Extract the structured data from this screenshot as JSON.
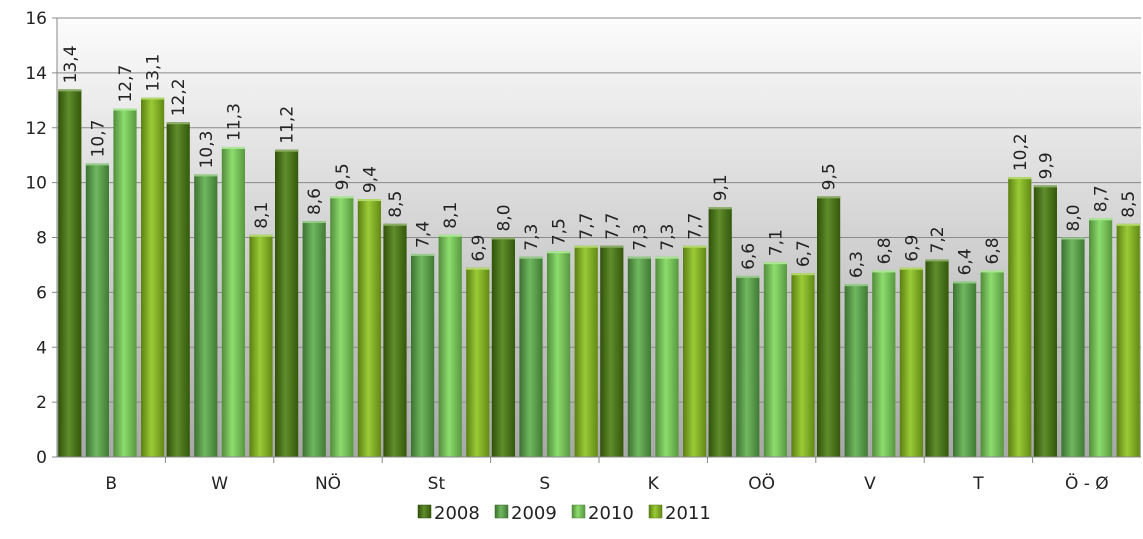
{
  "chart_data": {
    "type": "bar",
    "title": "",
    "xlabel": "",
    "ylabel": "",
    "ylim": [
      0,
      16
    ],
    "yticks": [
      0,
      2,
      4,
      6,
      8,
      10,
      12,
      14,
      16
    ],
    "grid": true,
    "legend_position": "bottom",
    "categories": [
      "B",
      "W",
      "NÖ",
      "St",
      "S",
      "K",
      "OÖ",
      "V",
      "T",
      "Ö - Ø"
    ],
    "series": [
      {
        "name": "2008",
        "color": "#4a7d0f",
        "values": [
          13.4,
          12.2,
          11.2,
          8.5,
          8.0,
          7.7,
          9.1,
          9.5,
          7.2,
          9.9
        ],
        "labels": [
          "13,4",
          "12,2",
          "11,2",
          "8,5",
          "8,0",
          "7,7",
          "9,1",
          "9,5",
          "7,2",
          "9,9"
        ]
      },
      {
        "name": "2009",
        "color": "#5cae4a",
        "values": [
          10.7,
          10.3,
          8.6,
          7.4,
          7.3,
          7.3,
          6.6,
          6.3,
          6.4,
          8.0
        ],
        "labels": [
          "10,7",
          "10,3",
          "8,6",
          "7,4",
          "7,3",
          "7,3",
          "6,6",
          "6,3",
          "6,4",
          "8,0"
        ]
      },
      {
        "name": "2010",
        "color": "#7ed85a",
        "values": [
          12.7,
          11.3,
          9.5,
          8.1,
          7.5,
          7.3,
          7.1,
          6.8,
          6.8,
          8.7
        ],
        "labels": [
          "12,7",
          "11,3",
          "9,5",
          "8,1",
          "7,5",
          "7,3",
          "7,1",
          "6,8",
          "6,8",
          "8,7"
        ]
      },
      {
        "name": "2011",
        "color": "#8cc41c",
        "values": [
          13.1,
          8.1,
          9.4,
          6.9,
          7.7,
          7.7,
          6.7,
          6.9,
          10.2,
          8.5
        ],
        "labels": [
          "13,1",
          "8,1",
          "9,4",
          "6,9",
          "7,7",
          "7,7",
          "6,7",
          "6,9",
          "10,2",
          "8,5"
        ]
      }
    ]
  }
}
